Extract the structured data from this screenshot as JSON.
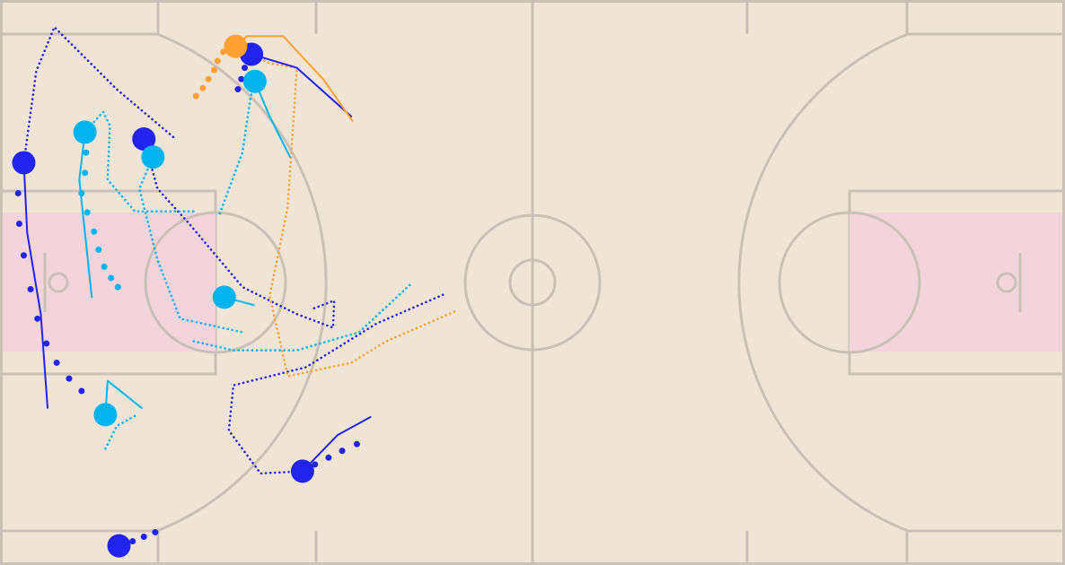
{
  "chart_data": {
    "type": "line",
    "xlim": [
      0,
      94
    ],
    "ylim": [
      50,
      0
    ],
    "series": [
      {
        "color": "#2323f0",
        "style": "dotted",
        "marker": true,
        "x": [
          2.1,
          3.2,
          4.8,
          10.3,
          15.5
        ],
        "values": [
          14.4,
          6.3,
          2.4,
          7.9,
          12.3
        ]
      },
      {
        "color": "#2323f0",
        "style": "solid",
        "marker": false,
        "x": [
          2.1,
          2.4,
          3.6,
          4.2
        ],
        "values": [
          14.4,
          20.6,
          27.8,
          36.1
        ]
      },
      {
        "color": "#2323f0",
        "style": "dots",
        "marker": false,
        "x": [
          1.6,
          1.7,
          2.1,
          2.7,
          3.3,
          4.1,
          5.0,
          6.1,
          7.2
        ],
        "values": [
          17.1,
          19.8,
          22.6,
          25.6,
          28.2,
          30.4,
          32.1,
          33.5,
          34.6
        ]
      },
      {
        "color": "#2323f0",
        "style": "dotted",
        "marker": true,
        "x": [
          12.7,
          13.9,
          16.7,
          21.4,
          26.2,
          29.4,
          29.5,
          27.4
        ],
        "values": [
          12.3,
          16.7,
          19.8,
          25.4,
          27.8,
          29.0,
          26.6,
          27.4
        ]
      },
      {
        "color": "#2323f0",
        "style": "dotted",
        "marker": true,
        "x": [
          26.7,
          23.0,
          20.2,
          20.6,
          27.0,
          33.3,
          39.3
        ],
        "values": [
          41.7,
          41.9,
          38.1,
          34.1,
          32.5,
          28.6,
          26.0
        ]
      },
      {
        "color": "#2323f0",
        "style": "solid",
        "marker": false,
        "x": [
          26.7,
          29.8,
          32.7
        ],
        "values": [
          41.7,
          38.5,
          36.9
        ]
      },
      {
        "color": "#2323f0",
        "style": "dots",
        "marker": false,
        "x": [
          27.8,
          29.0,
          30.2,
          31.5
        ],
        "values": [
          41.1,
          40.5,
          39.9,
          39.3
        ]
      },
      {
        "color": "#2323f0",
        "style": "dots",
        "marker": true,
        "x": [
          10.5,
          11.7,
          12.7,
          13.7
        ],
        "values": [
          48.3,
          47.9,
          47.5,
          47.1
        ]
      },
      {
        "color": "#2323f0",
        "style": "solid",
        "marker": true,
        "x": [
          22.2,
          26.2,
          31.0
        ],
        "values": [
          4.8,
          6.0,
          10.3
        ]
      },
      {
        "color": "#2323f0",
        "style": "dots",
        "marker": false,
        "x": [
          21.0,
          21.3,
          21.6,
          21.9
        ],
        "values": [
          7.9,
          7.0,
          6.0,
          5.2
        ]
      },
      {
        "color": "#00b4f0",
        "style": "solid",
        "marker": true,
        "x": [
          7.5,
          7.0,
          8.1
        ],
        "values": [
          11.7,
          15.9,
          26.3
        ]
      },
      {
        "color": "#00b4f0",
        "style": "dots",
        "marker": false,
        "x": [
          7.6,
          7.5,
          7.2,
          7.7,
          8.3,
          8.7,
          9.2,
          9.8,
          10.4
        ],
        "values": [
          13.5,
          15.3,
          17.1,
          18.8,
          20.5,
          22.1,
          23.6,
          24.6,
          25.4
        ]
      },
      {
        "color": "#00b4f0",
        "style": "dotted",
        "marker": false,
        "x": [
          7.5,
          9.1,
          9.7,
          9.5,
          11.9,
          17.1
        ],
        "values": [
          11.7,
          9.9,
          11.1,
          15.9,
          18.7,
          18.7
        ]
      },
      {
        "color": "#00b4f0",
        "style": "dotted",
        "marker": true,
        "x": [
          13.5,
          12.3,
          13.9,
          15.9,
          21.4
        ],
        "values": [
          13.9,
          16.7,
          23.0,
          28.2,
          29.4
        ]
      },
      {
        "color": "#00b4f0",
        "style": "solid",
        "marker": true,
        "x": [
          19.8,
          22.4
        ],
        "values": [
          26.3,
          27.0
        ]
      },
      {
        "color": "#00b4f0",
        "style": "dotted",
        "marker": false,
        "x": [
          17.1,
          20.6,
          26.2,
          31.7,
          36.3
        ],
        "values": [
          30.2,
          31.0,
          31.0,
          29.4,
          25.1
        ]
      },
      {
        "color": "#00b4f0",
        "style": "solid",
        "marker": true,
        "x": [
          9.3,
          9.5,
          12.5
        ],
        "values": [
          36.7,
          33.7,
          36.1
        ]
      },
      {
        "color": "#00b4f0",
        "style": "dotted",
        "marker": false,
        "x": [
          9.3,
          10.3,
          12.1
        ],
        "values": [
          39.7,
          37.7,
          36.7
        ]
      },
      {
        "color": "#00b4f0",
        "style": "solid",
        "marker": true,
        "x": [
          22.5,
          23.8,
          25.6
        ],
        "values": [
          7.2,
          10.3,
          13.9
        ]
      },
      {
        "color": "#00b4f0",
        "style": "dotted",
        "marker": false,
        "x": [
          22.5,
          22.1,
          21.4,
          19.4
        ],
        "values": [
          7.2,
          8.7,
          13.5,
          18.9
        ]
      },
      {
        "color": "#ffa030",
        "style": "solid",
        "marker": true,
        "x": [
          20.8,
          21.8,
          25.0,
          28.6,
          31.1
        ],
        "values": [
          4.1,
          3.2,
          3.2,
          7.1,
          10.7
        ]
      },
      {
        "color": "#ffa030",
        "style": "dotted",
        "marker": false,
        "x": [
          20.8,
          23.8,
          26.2,
          25.4,
          23.8,
          25.4,
          31.0,
          34.1,
          40.3
        ],
        "values": [
          4.1,
          5.6,
          6.0,
          18.3,
          26.2,
          33.3,
          32.1,
          30.2,
          27.5
        ]
      },
      {
        "color": "#ffa030",
        "style": "dots",
        "marker": false,
        "x": [
          17.3,
          17.9,
          18.4,
          18.9,
          19.2,
          19.7
        ],
        "values": [
          8.5,
          7.8,
          7.0,
          6.2,
          5.4,
          4.6
        ]
      }
    ]
  }
}
